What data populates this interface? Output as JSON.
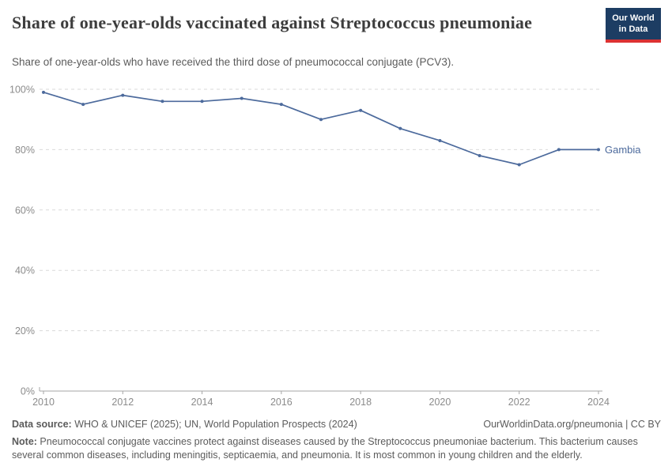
{
  "header": {
    "title": "Share of one-year-olds vaccinated against Streptococcus pneumoniae",
    "subtitle": "Share of one-year-olds who have received the third dose of pneumococcal conjugate (PCV3).",
    "logo": {
      "line1": "Our World",
      "line2": "in Data"
    }
  },
  "chart_data": {
    "type": "line",
    "title": "Share of one-year-olds vaccinated against Streptococcus pneumoniae",
    "xlabel": "",
    "ylabel": "",
    "xlim": [
      2010,
      2024
    ],
    "ylim": [
      0,
      100
    ],
    "grid": "horizontal-dashed",
    "legend_position": "end-of-line-label",
    "x_ticks": [
      2010,
      2012,
      2014,
      2016,
      2018,
      2020,
      2022,
      2024
    ],
    "y_ticks": [
      0,
      20,
      40,
      60,
      80,
      100
    ],
    "y_tick_suffix": "%",
    "series": [
      {
        "name": "Gambia",
        "color": "#4c6a9c",
        "x": [
          2010,
          2011,
          2012,
          2013,
          2014,
          2015,
          2016,
          2017,
          2018,
          2019,
          2020,
          2021,
          2022,
          2023,
          2024
        ],
        "values": [
          99,
          95,
          98,
          96,
          96,
          97,
          95,
          90,
          93,
          87,
          83,
          78,
          75,
          80,
          80
        ]
      }
    ]
  },
  "footer": {
    "source_label": "Data source:",
    "source_text": " WHO & UNICEF (2025); UN, World Population Prospects (2024)",
    "link": "OurWorldinData.org/pneumonia | CC BY",
    "note_label": "Note:",
    "note_text": " Pneumococcal conjugate vaccines protect against diseases caused by the Streptococcus pneumoniae bacterium. This bacterium causes several common diseases, including meningitis, septicaemia, and pneumonia. It is most common in young children and the elderly."
  },
  "colors": {
    "line": "#4c6a9c",
    "grid": "#dadada",
    "axis": "#a6a6a6",
    "tick_label": "#8b8b8b",
    "title": "#3d3d3d",
    "logo_bg": "#1d3d63",
    "logo_stripe": "#dc3232"
  }
}
